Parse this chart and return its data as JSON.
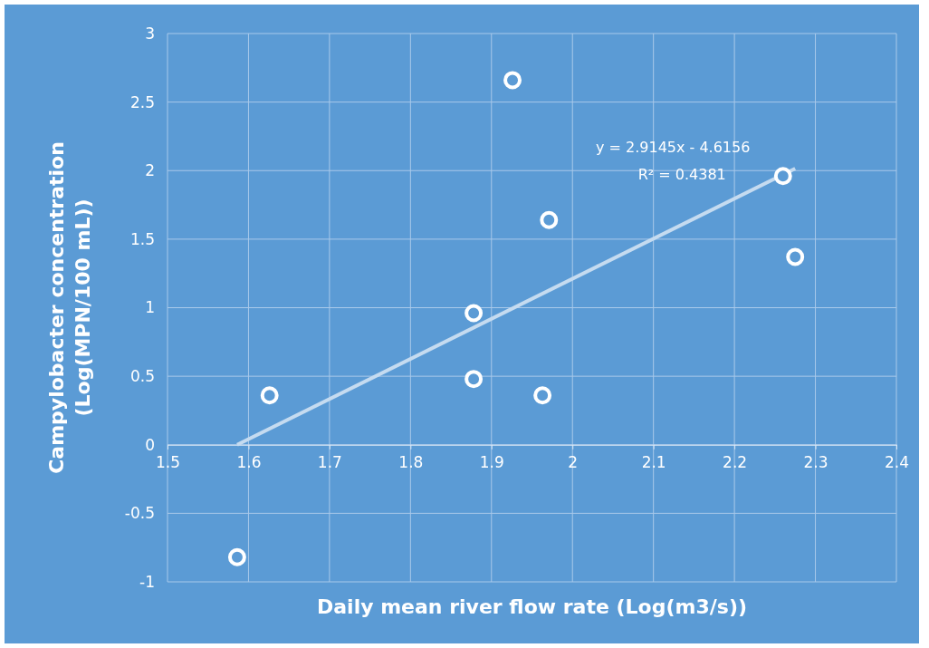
{
  "chart_data": {
    "type": "scatter",
    "xlabel": "Daily mean river flow rate (Log(m3/s))",
    "ylabel": "Campylobacter concentration (Log(MPN/100 mL))",
    "xlim": [
      1.5,
      2.4
    ],
    "ylim": [
      -1,
      3
    ],
    "xticks": [
      1.5,
      1.6,
      1.7,
      1.8,
      1.9,
      {
        "value": 2,
        "label": "2"
      },
      2.1,
      2.2,
      2.3,
      2.4
    ],
    "yticks": [
      -1,
      -0.5,
      0,
      0.5,
      1,
      1.5,
      2,
      2.5,
      3
    ],
    "grid": true,
    "marker": "circle",
    "annotations": [
      "y = 2.9145x - 4.6156",
      "R² = 0.4381"
    ],
    "series": [
      {
        "color": "#ffffff",
        "x": [
          1.586,
          1.626,
          1.878,
          1.878,
          1.926,
          1.963,
          1.971,
          2.26,
          2.275
        ],
        "values": [
          -0.82,
          0.36,
          0.96,
          0.48,
          2.66,
          0.36,
          1.64,
          1.96,
          1.37
        ]
      },
      {
        "type": "line",
        "color": "#c5dbf0",
        "marker": "none",
        "x": [
          1.586,
          2.275
        ],
        "values": [
          -0.0,
          2.015
        ]
      }
    ]
  }
}
